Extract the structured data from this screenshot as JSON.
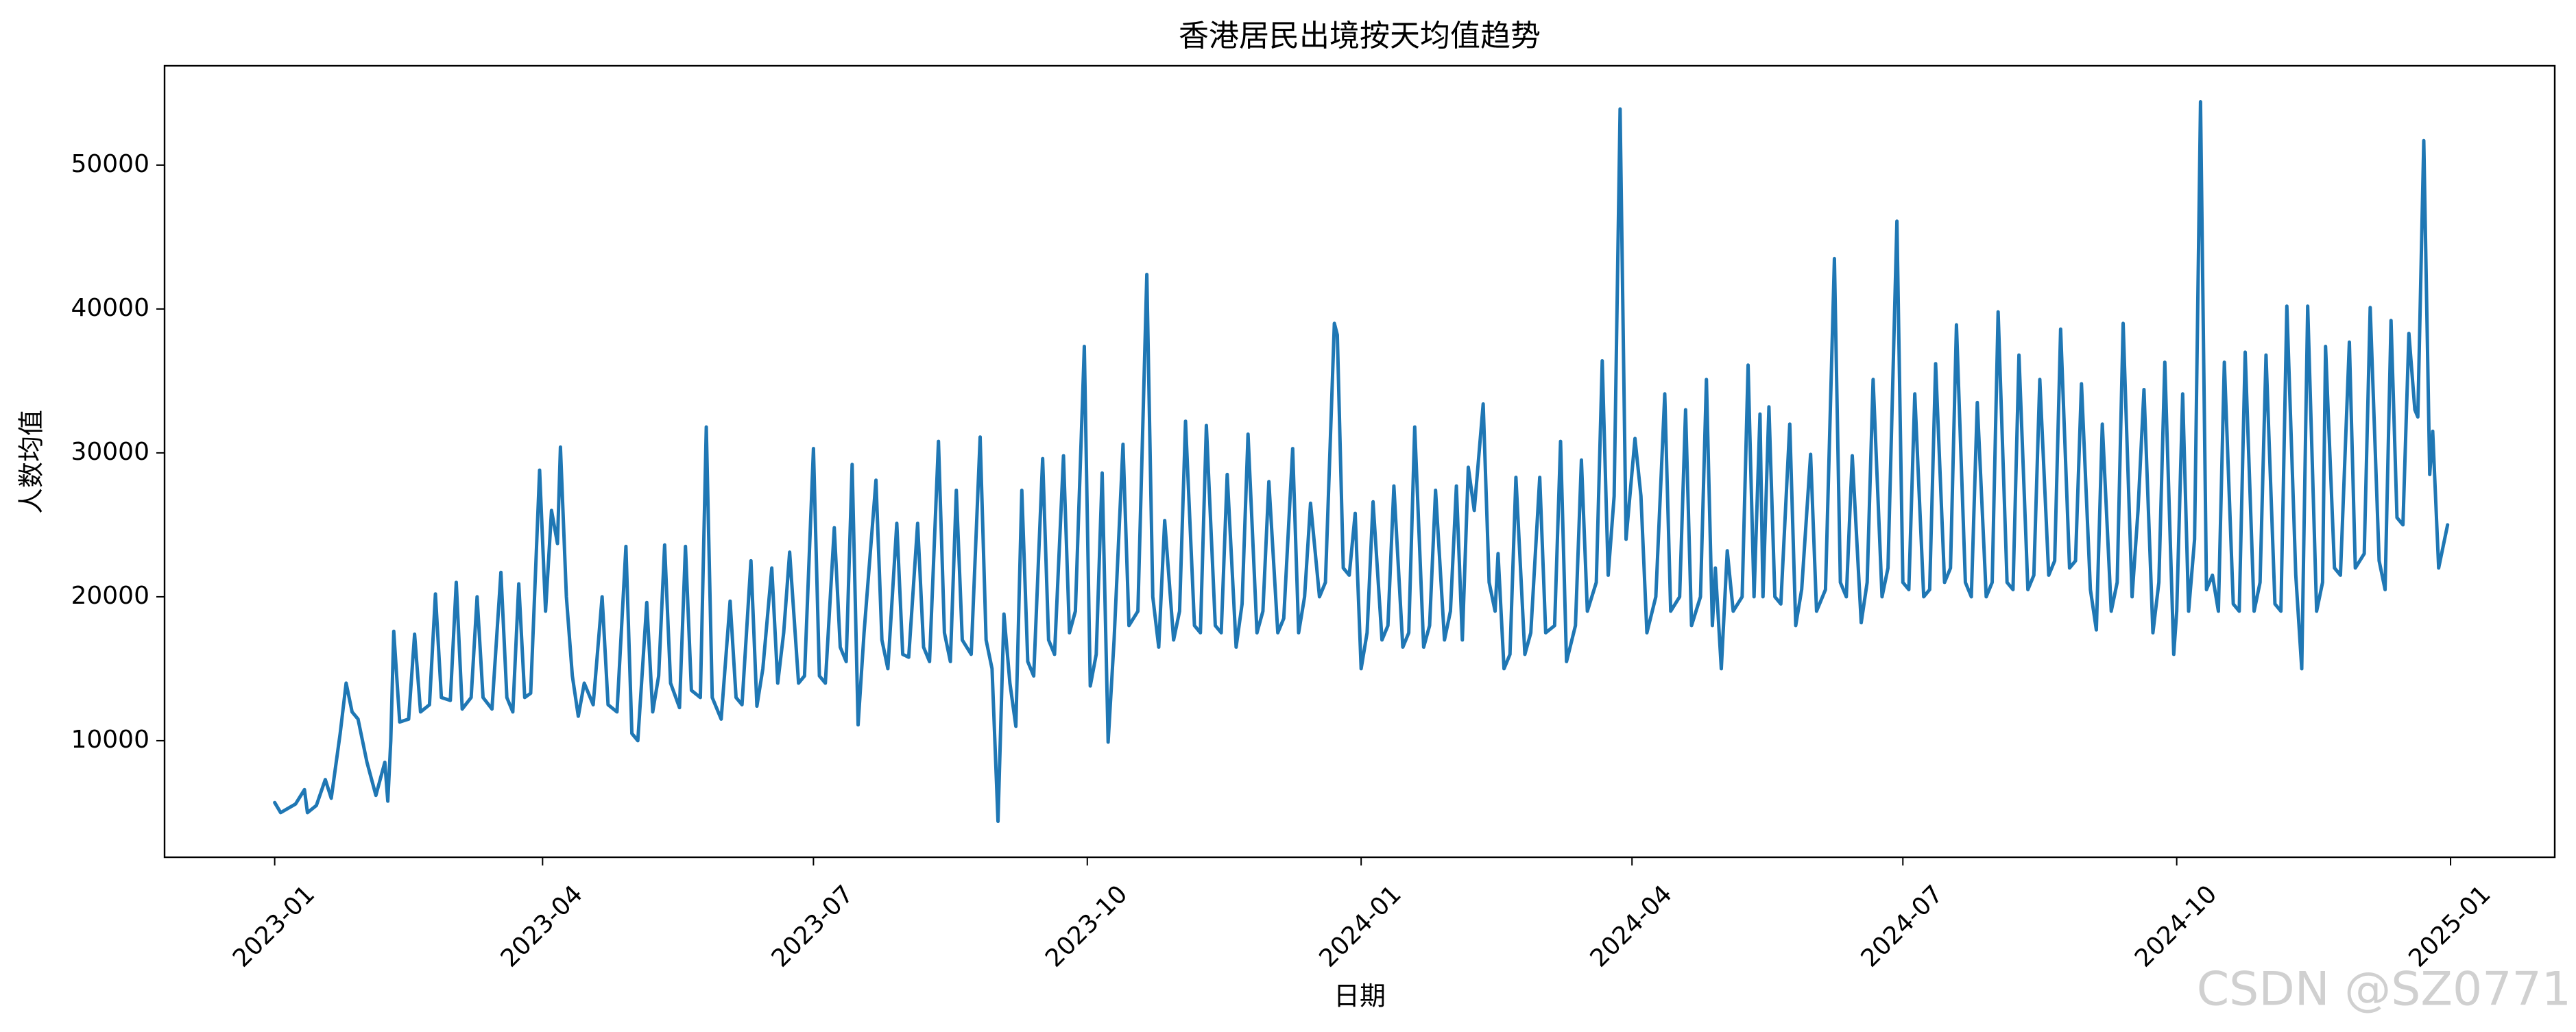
{
  "chart_data": {
    "type": "line",
    "title": "香港居民出境按天均值趋势",
    "xlabel": "日期",
    "ylabel": "人数均值",
    "watermark": "CSDN @SZ0771",
    "color": "#1f77b4",
    "xlim": [
      "2022-11-25",
      "2025-02-05"
    ],
    "ylim": [
      1900,
      56900
    ],
    "xticks": [
      {
        "value": "2023-01-01",
        "label": "2023-01"
      },
      {
        "value": "2023-04-01",
        "label": "2023-04"
      },
      {
        "value": "2023-07-01",
        "label": "2023-07"
      },
      {
        "value": "2023-10-01",
        "label": "2023-10"
      },
      {
        "value": "2024-01-01",
        "label": "2024-01"
      },
      {
        "value": "2024-04-01",
        "label": "2024-04"
      },
      {
        "value": "2024-07-01",
        "label": "2024-07"
      },
      {
        "value": "2024-10-01",
        "label": "2024-10"
      },
      {
        "value": "2025-01-01",
        "label": "2025-01"
      }
    ],
    "yticks": [
      10000,
      20000,
      30000,
      40000,
      50000
    ],
    "x": [
      "2023-01-01",
      "2023-01-03",
      "2023-01-08",
      "2023-01-11",
      "2023-01-12",
      "2023-01-15",
      "2023-01-18",
      "2023-01-20",
      "2023-01-23",
      "2023-01-25",
      "2023-01-27",
      "2023-01-29",
      "2023-02-01",
      "2023-02-04",
      "2023-02-07",
      "2023-02-08",
      "2023-02-09",
      "2023-02-10",
      "2023-02-12",
      "2023-02-15",
      "2023-02-17",
      "2023-02-19",
      "2023-02-22",
      "2023-02-24",
      "2023-02-26",
      "2023-03-01",
      "2023-03-03",
      "2023-03-05",
      "2023-03-08",
      "2023-03-10",
      "2023-03-12",
      "2023-03-15",
      "2023-03-18",
      "2023-03-20",
      "2023-03-22",
      "2023-03-24",
      "2023-03-26",
      "2023-03-28",
      "2023-03-31",
      "2023-04-02",
      "2023-04-04",
      "2023-04-06",
      "2023-04-07",
      "2023-04-09",
      "2023-04-11",
      "2023-04-13",
      "2023-04-15",
      "2023-04-18",
      "2023-04-21",
      "2023-04-23",
      "2023-04-26",
      "2023-04-29",
      "2023-05-01",
      "2023-05-03",
      "2023-05-06",
      "2023-05-08",
      "2023-05-10",
      "2023-05-12",
      "2023-05-14",
      "2023-05-17",
      "2023-05-19",
      "2023-05-21",
      "2023-05-24",
      "2023-05-26",
      "2023-05-28",
      "2023-05-31",
      "2023-06-03",
      "2023-06-05",
      "2023-06-07",
      "2023-06-10",
      "2023-06-12",
      "2023-06-14",
      "2023-06-17",
      "2023-06-19",
      "2023-06-21",
      "2023-06-23",
      "2023-06-26",
      "2023-06-28",
      "2023-07-01",
      "2023-07-03",
      "2023-07-05",
      "2023-07-08",
      "2023-07-10",
      "2023-07-12",
      "2023-07-14",
      "2023-07-16",
      "2023-07-18",
      "2023-07-22",
      "2023-07-24",
      "2023-07-26",
      "2023-07-29",
      "2023-07-31",
      "2023-08-02",
      "2023-08-05",
      "2023-08-07",
      "2023-08-09",
      "2023-08-12",
      "2023-08-14",
      "2023-08-16",
      "2023-08-18",
      "2023-08-20",
      "2023-08-23",
      "2023-08-26",
      "2023-08-28",
      "2023-08-30",
      "2023-09-01",
      "2023-09-03",
      "2023-09-05",
      "2023-09-07",
      "2023-09-09",
      "2023-09-11",
      "2023-09-13",
      "2023-09-16",
      "2023-09-18",
      "2023-09-20",
      "2023-09-23",
      "2023-09-25",
      "2023-09-27",
      "2023-09-30",
      "2023-10-02",
      "2023-10-04",
      "2023-10-06",
      "2023-10-08",
      "2023-10-10",
      "2023-10-13",
      "2023-10-15",
      "2023-10-18",
      "2023-10-21",
      "2023-10-23",
      "2023-10-25",
      "2023-10-27",
      "2023-10-30",
      "2023-11-01",
      "2023-11-03",
      "2023-11-06",
      "2023-11-08",
      "2023-11-10",
      "2023-11-13",
      "2023-11-15",
      "2023-11-17",
      "2023-11-20",
      "2023-11-22",
      "2023-11-24",
      "2023-11-27",
      "2023-11-29",
      "2023-12-01",
      "2023-12-04",
      "2023-12-06",
      "2023-12-09",
      "2023-12-11",
      "2023-12-13",
      "2023-12-15",
      "2023-12-18",
      "2023-12-20",
      "2023-12-23",
      "2023-12-24",
      "2023-12-26",
      "2023-12-28",
      "2023-12-30",
      "2024-01-01",
      "2024-01-03",
      "2024-01-05",
      "2024-01-08",
      "2024-01-10",
      "2024-01-12",
      "2024-01-15",
      "2024-01-17",
      "2024-01-19",
      "2024-01-22",
      "2024-01-24",
      "2024-01-26",
      "2024-01-29",
      "2024-01-31",
      "2024-02-02",
      "2024-02-04",
      "2024-02-06",
      "2024-02-08",
      "2024-02-11",
      "2024-02-13",
      "2024-02-15",
      "2024-02-16",
      "2024-02-18",
      "2024-02-20",
      "2024-02-22",
      "2024-02-25",
      "2024-02-27",
      "2024-03-01",
      "2024-03-03",
      "2024-03-06",
      "2024-03-08",
      "2024-03-10",
      "2024-03-13",
      "2024-03-15",
      "2024-03-17",
      "2024-03-20",
      "2024-03-22",
      "2024-03-24",
      "2024-03-26",
      "2024-03-28",
      "2024-03-30",
      "2024-04-02",
      "2024-04-04",
      "2024-04-06",
      "2024-04-09",
      "2024-04-12",
      "2024-04-14",
      "2024-04-17",
      "2024-04-19",
      "2024-04-21",
      "2024-04-24",
      "2024-04-26",
      "2024-04-28",
      "2024-04-29",
      "2024-05-01",
      "2024-05-03",
      "2024-05-05",
      "2024-05-08",
      "2024-05-10",
      "2024-05-12",
      "2024-05-14",
      "2024-05-15",
      "2024-05-17",
      "2024-05-19",
      "2024-05-21",
      "2024-05-24",
      "2024-05-26",
      "2024-05-28",
      "2024-05-31",
      "2024-06-02",
      "2024-06-05",
      "2024-06-08",
      "2024-06-10",
      "2024-06-12",
      "2024-06-14",
      "2024-06-17",
      "2024-06-19",
      "2024-06-21",
      "2024-06-24",
      "2024-06-26",
      "2024-06-29",
      "2024-07-01",
      "2024-07-03",
      "2024-07-05",
      "2024-07-08",
      "2024-07-10",
      "2024-07-12",
      "2024-07-15",
      "2024-07-17",
      "2024-07-19",
      "2024-07-22",
      "2024-07-24",
      "2024-07-26",
      "2024-07-29",
      "2024-07-31",
      "2024-08-02",
      "2024-08-05",
      "2024-08-07",
      "2024-08-09",
      "2024-08-12",
      "2024-08-14",
      "2024-08-16",
      "2024-08-19",
      "2024-08-21",
      "2024-08-23",
      "2024-08-26",
      "2024-08-28",
      "2024-08-30",
      "2024-09-02",
      "2024-09-04",
      "2024-09-06",
      "2024-09-09",
      "2024-09-11",
      "2024-09-13",
      "2024-09-16",
      "2024-09-18",
      "2024-09-20",
      "2024-09-23",
      "2024-09-25",
      "2024-09-27",
      "2024-09-30",
      "2024-10-01",
      "2024-10-03",
      "2024-10-05",
      "2024-10-07",
      "2024-10-09",
      "2024-10-11",
      "2024-10-13",
      "2024-10-15",
      "2024-10-17",
      "2024-10-20",
      "2024-10-22",
      "2024-10-24",
      "2024-10-27",
      "2024-10-29",
      "2024-10-31",
      "2024-11-03",
      "2024-11-05",
      "2024-11-07",
      "2024-11-10",
      "2024-11-12",
      "2024-11-14",
      "2024-11-17",
      "2024-11-19",
      "2024-11-20",
      "2024-11-23",
      "2024-11-25",
      "2024-11-28",
      "2024-11-30",
      "2024-12-03",
      "2024-12-05",
      "2024-12-08",
      "2024-12-10",
      "2024-12-12",
      "2024-12-14",
      "2024-12-16",
      "2024-12-18",
      "2024-12-20",
      "2024-12-21",
      "2024-12-23",
      "2024-12-25",
      "2024-12-26",
      "2024-12-28",
      "2024-12-31"
    ],
    "values": [
      5700,
      5000,
      5600,
      6600,
      5000,
      5500,
      7300,
      6000,
      10500,
      14000,
      12000,
      11500,
      8500,
      6200,
      8500,
      5800,
      10000,
      17600,
      11300,
      11500,
      17400,
      12000,
      12500,
      20200,
      13000,
      12800,
      21000,
      12200,
      13000,
      20000,
      13000,
      12200,
      21700,
      13000,
      12000,
      20900,
      13000,
      13300,
      28800,
      19000,
      26000,
      23700,
      30400,
      20000,
      14500,
      11700,
      14000,
      12500,
      20000,
      12500,
      12000,
      23500,
      10500,
      10000,
      19600,
      12000,
      14500,
      23600,
      14000,
      12300,
      23500,
      13500,
      13000,
      31800,
      13000,
      11500,
      19700,
      13000,
      12500,
      22500,
      12400,
      15000,
      22000,
      14000,
      17500,
      23100,
      14000,
      14500,
      30300,
      14500,
      14000,
      24800,
      16500,
      15500,
      29200,
      11100,
      17500,
      28100,
      17000,
      15000,
      25100,
      16000,
      15800,
      25100,
      16500,
      15500,
      30800,
      17500,
      15500,
      27400,
      17000,
      16000,
      31100,
      17000,
      15000,
      4400,
      18800,
      14000,
      11000,
      27400,
      15500,
      14500,
      29600,
      17000,
      16000,
      29800,
      17500,
      19000,
      37400,
      13800,
      16000,
      28600,
      9900,
      17000,
      30600,
      18000,
      19000,
      42400,
      20000,
      16500,
      25300,
      17000,
      19000,
      32200,
      18000,
      17500,
      31900,
      18000,
      17500,
      28500,
      16500,
      19500,
      31300,
      17500,
      19000,
      28000,
      17500,
      18500,
      30300,
      17500,
      20000,
      26500,
      20000,
      21000,
      39000,
      38200,
      22000,
      21500,
      25800,
      15000,
      17500,
      26600,
      17000,
      18000,
      27700,
      16500,
      17500,
      31800,
      16500,
      18000,
      27400,
      17000,
      19000,
      27700,
      17000,
      29000,
      26000,
      33400,
      21000,
      19000,
      23000,
      15000,
      16000,
      28300,
      16000,
      17500,
      28300,
      17500,
      18000,
      30800,
      15500,
      18000,
      29500,
      19000,
      21000,
      36400,
      21500,
      27000,
      53900,
      24000,
      31000,
      27000,
      17500,
      20000,
      34100,
      19000,
      20000,
      33000,
      18000,
      20000,
      35100,
      18000,
      22000,
      15000,
      23200,
      19000,
      20000,
      36100,
      20000,
      32700,
      20000,
      33200,
      20000,
      19500,
      32000,
      18000,
      20500,
      29900,
      19000,
      20500,
      43500,
      21000,
      20000,
      29800,
      18200,
      21000,
      35100,
      20000,
      22000,
      46100,
      21000,
      20500,
      34100,
      20000,
      20500,
      36200,
      21000,
      22000,
      38900,
      21000,
      20000,
      33500,
      20000,
      21000,
      39800,
      21000,
      20500,
      36800,
      20500,
      21500,
      35100,
      21500,
      22500,
      38600,
      22000,
      22500,
      34800,
      20500,
      17700,
      32000,
      19000,
      21000,
      39000,
      20000,
      26000,
      34400,
      17500,
      21000,
      36300,
      16000,
      19000,
      34100,
      19000,
      24000,
      54400,
      20500,
      21500,
      19000,
      36300,
      19500,
      19000,
      37000,
      19000,
      21000,
      36800,
      19500,
      19000,
      40200,
      21500,
      15000,
      40200,
      19000,
      21000,
      37400,
      22000,
      21500,
      37700,
      22000,
      23000,
      40100,
      22500,
      20500,
      39200,
      25500,
      25000,
      38300,
      33000,
      32500,
      51700,
      28500,
      31500,
      22000,
      25000
    ]
  }
}
